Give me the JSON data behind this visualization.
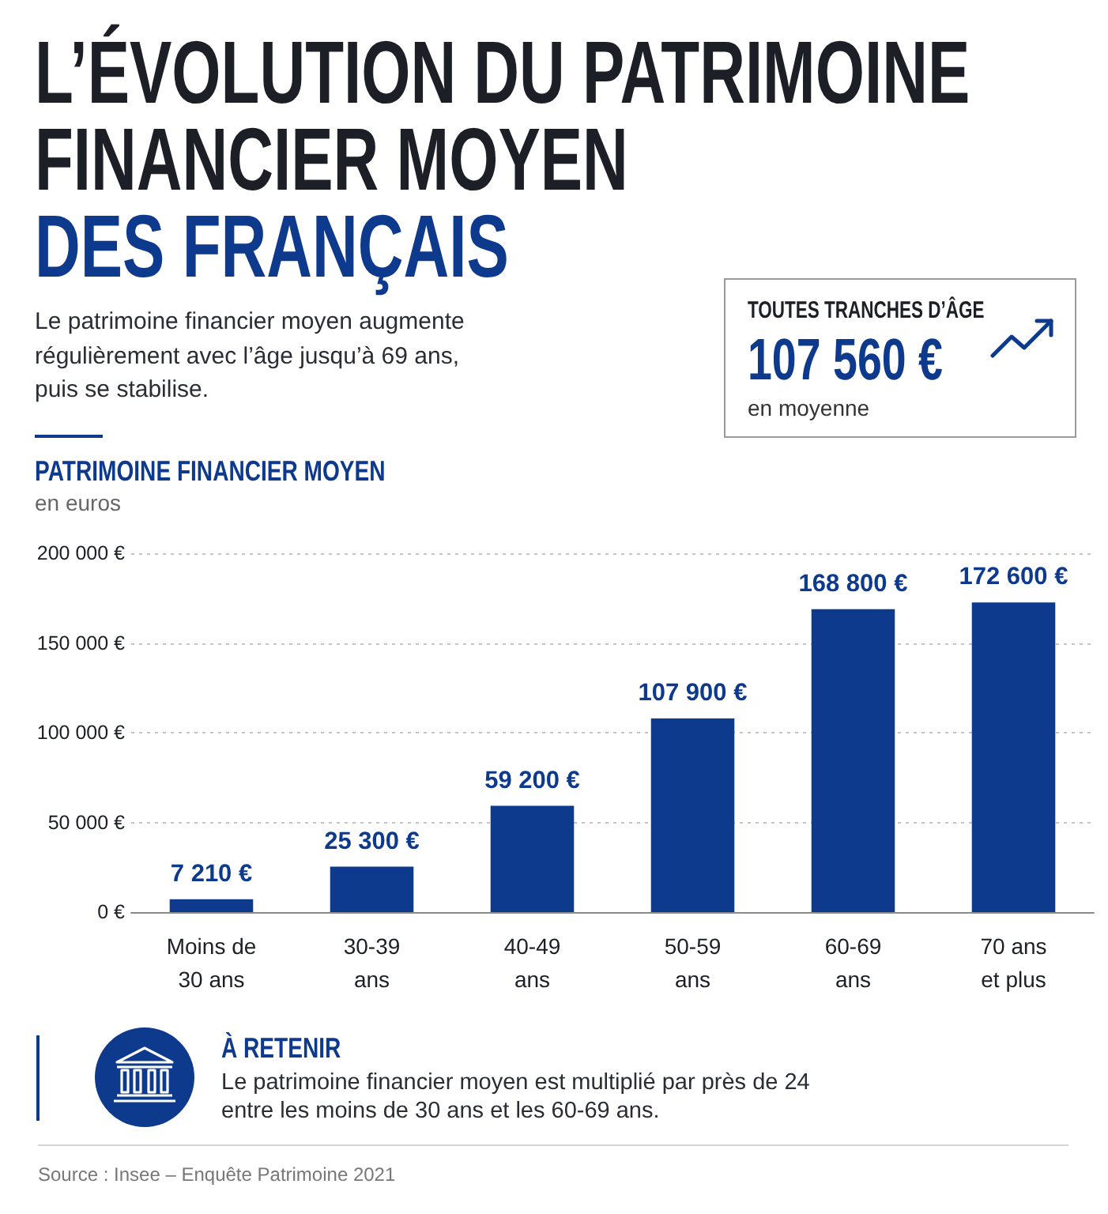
{
  "chart_data": {
    "type": "bar",
    "title": "L’ÉVOLUTION DU PATRIMOINE\nFINANCIER MOYEN\nDES FRANÇAIS",
    "subtitle": "Le patrimoine financier moyen augmente régulièrement avec l’âge jusqu’à 69 ans, puis se stabilise.",
    "ylabel": "PATRIMOINE FINANCIER MOYEN",
    "categories": [
      "Moins de 30 ans",
      "30-39 ans",
      "40-49 ans",
      "50-59 ans",
      "60-69 ans",
      "70 ans et plus"
    ],
    "values": [
      7210,
      25300,
      59200,
      107900,
      168800,
      172600
    ],
    "color": "#0d3a8c",
    "value_labels": [
      "7 210 €",
      "25 300 €",
      "59 200 €",
      "107 900 €",
      "168 800 €",
      "172 600 €"
    ],
    "ylim": [
      0,
      200000
    ],
    "yticks": [
      {
        "value": 0,
        "label": "0 €"
      },
      {
        "value": 50000,
        "label": "50 000 €"
      },
      {
        "value": 100000,
        "label": "100 000 €"
      },
      {
        "value": 150000,
        "label": "150 000 €"
      },
      {
        "value": 200000,
        "label": "200 000 €"
      }
    ],
    "grid": "y",
    "annotations": [
      "TOUTES TRANCHES D’ÂGE",
      "107 560 €",
      "en moyenne",
      "en euros",
      "À RETENIR",
      "Le patrimoine financier moyen est multiplié par près de 24 entre les moins de 30 ans et les 60-69 ans.",
      "Source : Insee – Enquête Patrimoine 2021"
    ]
  }
}
